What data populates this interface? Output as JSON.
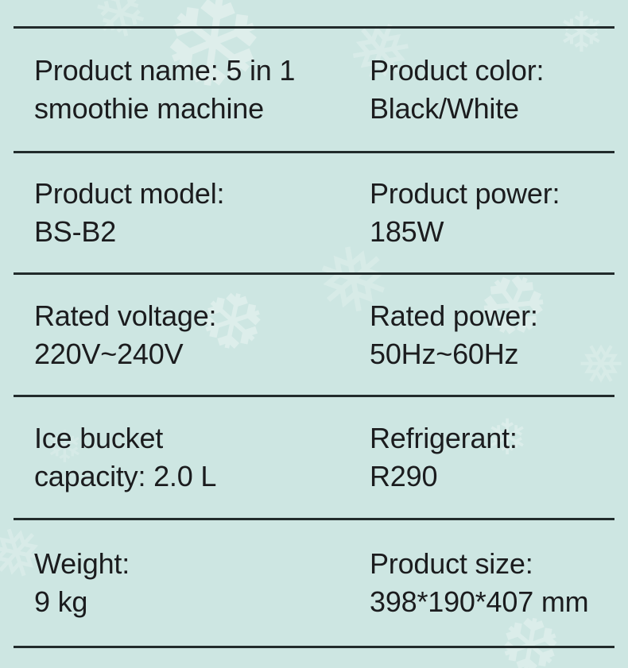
{
  "page": {
    "background_color": "#cde6e2",
    "text_color": "#1b1c1e",
    "divider_color": "#212b2b",
    "snowflake_color": "#ffffff"
  },
  "decor": {
    "snowflake_glyph_a": "❄",
    "snowflake_glyph_b": "❅",
    "snowflake_glyph_c": "❆"
  },
  "spec_table": {
    "rows": [
      {
        "left": "Product name: 5 in 1\nsmoothie machine",
        "right": "Product color:\nBlack/White"
      },
      {
        "left": "Product model:\nBS-B2",
        "right": "Product power:\n185W"
      },
      {
        "left": "Rated voltage:\n220V~240V",
        "right": "Rated power:\n50Hz~60Hz"
      },
      {
        "left": "Ice bucket\ncapacity: 2.0 L",
        "right": "Refrigerant:\nR290"
      },
      {
        "left": "Weight:\n9 kg",
        "right": "Product size:\n398*190*407 mm"
      }
    ]
  }
}
